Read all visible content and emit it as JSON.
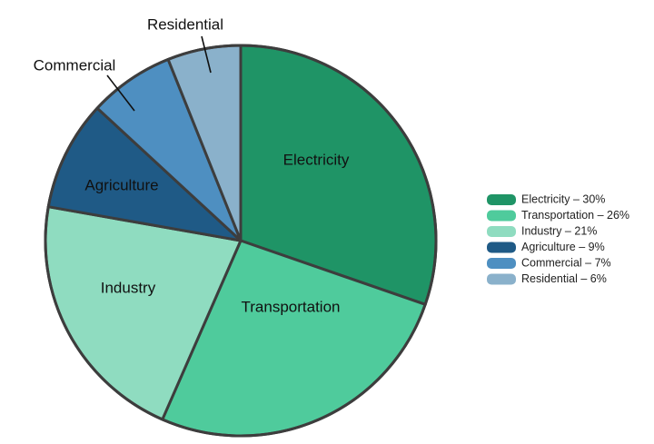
{
  "chart_data": {
    "type": "pie",
    "title": "",
    "start_angle_deg": 0,
    "direction": "clockwise",
    "legend_placement": "right",
    "slices": [
      {
        "label": "Electricity",
        "value": 30,
        "color": "#1f9466",
        "legend": "Electricity – 30%",
        "callout": false
      },
      {
        "label": "Transportation",
        "value": 26,
        "color": "#4fcb9c",
        "legend": "Transportation – 26%",
        "callout": false
      },
      {
        "label": "Industry",
        "value": 21,
        "color": "#8fdcc0",
        "legend": "Industry – 21%",
        "callout": false
      },
      {
        "label": "Agriculture",
        "value": 9,
        "color": "#1f5a86",
        "legend": "Agriculture – 9%",
        "callout": false
      },
      {
        "label": "Commercial",
        "value": 7,
        "color": "#4e8fc1",
        "legend": "Commercial – 7%",
        "callout": true
      },
      {
        "label": "Residential",
        "value": 6,
        "color": "#8ab1cb",
        "legend": "Residential – 6%",
        "callout": true
      }
    ]
  }
}
